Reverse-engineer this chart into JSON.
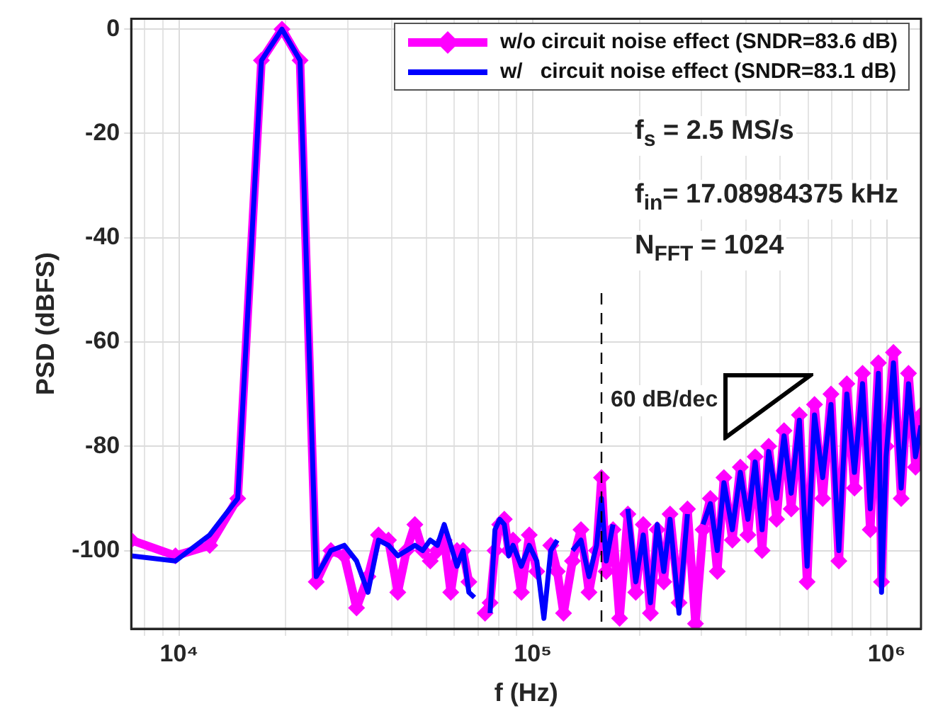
{
  "chart_data": {
    "type": "line",
    "xlabel": "f (Hz)",
    "ylabel": "PSD (dBFS)",
    "log": "x",
    "legend": "top right",
    "grid": true,
    "xlim": [
      7324,
      1250000
    ],
    "ylim": [
      -115,
      2
    ],
    "xticks": [
      {
        "value": 8000,
        "label": null
      },
      {
        "value": 9000,
        "label": null
      },
      {
        "value": 10000,
        "label": "10⁴"
      },
      {
        "value": 20000,
        "label": null
      },
      {
        "value": 30000,
        "label": null
      },
      {
        "value": 40000,
        "label": null
      },
      {
        "value": 50000,
        "label": null
      },
      {
        "value": 60000,
        "label": null
      },
      {
        "value": 70000,
        "label": null
      },
      {
        "value": 80000,
        "label": null
      },
      {
        "value": 90000,
        "label": null
      },
      {
        "value": 100000,
        "label": "10⁵"
      },
      {
        "value": 200000,
        "label": null
      },
      {
        "value": 300000,
        "label": null
      },
      {
        "value": 400000,
        "label": null
      },
      {
        "value": 500000,
        "label": null
      },
      {
        "value": 600000,
        "label": null
      },
      {
        "value": 700000,
        "label": null
      },
      {
        "value": 800000,
        "label": null
      },
      {
        "value": 900000,
        "label": null
      },
      {
        "value": 1000000,
        "label": "10⁶"
      }
    ],
    "yticks": [
      -100,
      -80,
      -60,
      -40,
      -20,
      0
    ],
    "x": [
      7324,
      9766,
      12207,
      14648,
      17090,
      19531,
      21973,
      24414,
      26855,
      29297,
      31738,
      34180,
      36621,
      39063,
      41504,
      43945,
      46387,
      48828,
      51270,
      53711,
      56152,
      58594,
      61035,
      63477,
      65918,
      68359,
      70801,
      73242,
      75684,
      78125,
      80566,
      83008,
      85449,
      87891,
      92773,
      97656,
      102539,
      107422,
      112305,
      117188,
      122070,
      129395,
      136719,
      144043,
      151367,
      156250,
      161133,
      168457,
      175781,
      185547,
      195313,
      205078,
      214844,
      224609,
      234375,
      244141,
      258789,
      273438,
      288086,
      302734,
      317383,
      332031,
      346680,
      366211,
      385742,
      405273,
      424805,
      444336,
      463867,
      488281,
      512695,
      537109,
      566406,
      595703,
      625000,
      659180,
      695801,
      732422,
      771484,
      810547,
      854492,
      898438,
      947266,
      966797,
      996094,
      1044922,
      1098633,
      1152344,
      1206055,
      1250000
    ],
    "series": [
      {
        "name": "w/o circuit noise effect (SNDR=83.6 dB)",
        "color": "#ff00ff",
        "marker": "diamond",
        "values": [
          -98,
          -101,
          -99,
          -90,
          -6,
          0,
          -6,
          -106,
          -100,
          -101,
          -111,
          -105,
          -97,
          -98,
          -108,
          -100,
          -95,
          -100,
          -102,
          -100,
          -98,
          -108,
          -100,
          -100,
          -106,
          null,
          null,
          -112,
          -110,
          -100,
          -95,
          -94,
          -100,
          -98,
          -108,
          -97,
          -104,
          null,
          -99,
          -104,
          -112,
          -102,
          -96,
          -108,
          -100,
          -86,
          -104,
          -96,
          -113,
          -93,
          -108,
          -95,
          -112,
          -96,
          -106,
          -93,
          -110,
          -92,
          -114,
          -96,
          -90,
          -104,
          -86,
          -98,
          -84,
          -97,
          -82,
          -100,
          -80,
          -94,
          -77,
          -92,
          -74,
          -106,
          -72,
          -90,
          -70,
          -102,
          -68,
          -88,
          -66,
          -96,
          -64,
          -106,
          -80,
          -62,
          -90,
          -66,
          -84,
          -74
        ]
      },
      {
        "name": "w/   circuit noise effect (SNDR=83.1 dB)",
        "color": "#0000ff",
        "marker": "none",
        "values": [
          -101,
          -102,
          -97,
          -90,
          -6,
          0,
          -6,
          -105,
          -100,
          -99,
          -102,
          -108,
          -98,
          -99,
          -101,
          -100,
          -99,
          -100,
          -98,
          -99,
          -95,
          -99,
          -103,
          -100,
          -108,
          -109,
          null,
          null,
          -112,
          -96,
          -94,
          -95,
          -101,
          -99,
          -103,
          -99,
          -102,
          -113,
          -100,
          -98,
          null,
          -100,
          -98,
          -105,
          -99,
          -90,
          -102,
          -95,
          null,
          -92,
          -106,
          -97,
          -110,
          -95,
          -104,
          -94,
          -112,
          -93,
          null,
          -95,
          -91,
          -100,
          -87,
          -96,
          -85,
          -94,
          -83,
          -96,
          -81,
          -90,
          -78,
          -89,
          -75,
          -103,
          -74,
          -86,
          -72,
          -100,
          -70,
          -85,
          -68,
          -92,
          -66,
          -108,
          -82,
          -64,
          -88,
          -68,
          -82,
          -76
        ]
      }
    ],
    "ref_lines": [
      {
        "axis": "x",
        "value": 156250,
        "color": "#000000",
        "line_style": "dashed"
      }
    ],
    "annotations": [
      "f$_{s}$ = 2.5 MS/s",
      "f$_{in}$= 17.08984375 kHz",
      "N$_{FFT}$ = 1024",
      "60 dB/dec"
    ]
  }
}
